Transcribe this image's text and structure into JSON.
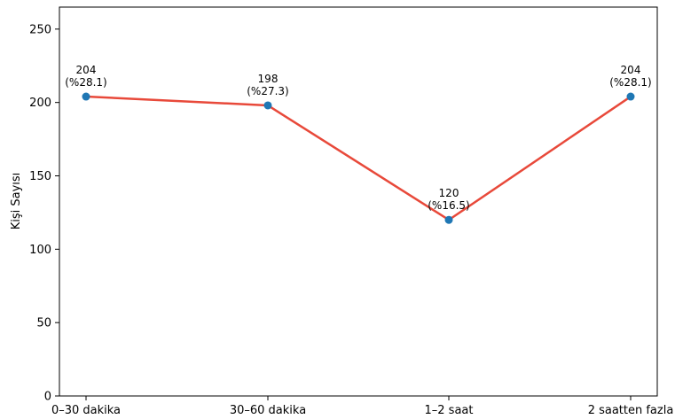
{
  "chart_data": {
    "type": "line",
    "categories": [
      "0–30 dakika",
      "30–60 dakika",
      "1–2 saat",
      "2 saatten fazla"
    ],
    "values": [
      204,
      198,
      120,
      204
    ],
    "data_labels": [
      "204\n(%28.1)",
      "198\n(%27.3)",
      "120\n(%16.5)",
      "204\n(%28.1)"
    ],
    "ylabel": "Kişi Sayısı",
    "xlabel": "",
    "title": "",
    "ylim": [
      0,
      265
    ],
    "yticks": [
      0,
      50,
      100,
      150,
      200,
      250
    ],
    "line_color": "#e8493a",
    "marker_color": "#1f77b4",
    "grid": false
  }
}
